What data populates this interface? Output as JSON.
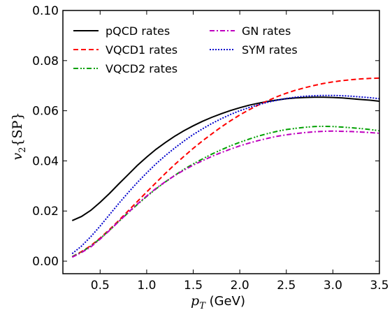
{
  "chart_data": {
    "type": "line",
    "xlabel": "p_T (GeV)",
    "ylabel": "v_2{SP}",
    "xlim": [
      0.1,
      3.5
    ],
    "ylim": [
      -0.005,
      0.1
    ],
    "xticks": [
      "0.5",
      "1.0",
      "1.5",
      "2.0",
      "2.5",
      "3.0",
      "3.5"
    ],
    "xtick_values": [
      0.5,
      1.0,
      1.5,
      2.0,
      2.5,
      3.0,
      3.5
    ],
    "yticks": [
      "0.00",
      "0.02",
      "0.04",
      "0.06",
      "0.08",
      "0.10"
    ],
    "ytick_values": [
      0.0,
      0.02,
      0.04,
      0.06,
      0.08,
      0.1
    ],
    "grid": false,
    "legend_position": "top-left",
    "series": [
      {
        "name": "pQCD rates",
        "color": "#000000",
        "dash": "solid",
        "x": [
          0.2,
          0.3,
          0.4,
          0.5,
          0.6,
          0.7,
          0.8,
          0.9,
          1.0,
          1.1,
          1.2,
          1.3,
          1.4,
          1.5,
          1.6,
          1.7,
          1.8,
          1.9,
          2.0,
          2.1,
          2.2,
          2.3,
          2.4,
          2.5,
          2.6,
          2.7,
          2.8,
          2.9,
          3.0,
          3.1,
          3.2,
          3.3,
          3.4,
          3.5
        ],
        "y": [
          0.0162,
          0.0178,
          0.0203,
          0.0235,
          0.027,
          0.0308,
          0.0345,
          0.0382,
          0.0415,
          0.0446,
          0.0473,
          0.0498,
          0.052,
          0.054,
          0.0558,
          0.0574,
          0.0588,
          0.0601,
          0.0612,
          0.0622,
          0.063,
          0.0637,
          0.0643,
          0.0648,
          0.0651,
          0.0653,
          0.0654,
          0.0654,
          0.0653,
          0.0651,
          0.0648,
          0.0645,
          0.0642,
          0.0638
        ]
      },
      {
        "name": "VQCD1 rates",
        "color": "#ff0000",
        "dash": "dashed",
        "x": [
          0.2,
          0.3,
          0.4,
          0.5,
          0.6,
          0.7,
          0.8,
          0.9,
          1.0,
          1.1,
          1.2,
          1.3,
          1.4,
          1.5,
          1.6,
          1.7,
          1.8,
          1.9,
          2.0,
          2.1,
          2.2,
          2.3,
          2.4,
          2.5,
          2.6,
          2.7,
          2.8,
          2.9,
          3.0,
          3.1,
          3.2,
          3.3,
          3.4,
          3.5
        ],
        "y": [
          0.0018,
          0.0038,
          0.0062,
          0.0092,
          0.0126,
          0.0162,
          0.02,
          0.0238,
          0.0276,
          0.0313,
          0.035,
          0.0385,
          0.0418,
          0.045,
          0.048,
          0.0508,
          0.0535,
          0.056,
          0.0583,
          0.0604,
          0.0623,
          0.064,
          0.0656,
          0.067,
          0.0682,
          0.0692,
          0.0701,
          0.0709,
          0.0715,
          0.072,
          0.0724,
          0.0727,
          0.0729,
          0.073
        ]
      },
      {
        "name": "VQCD2 rates",
        "color": "#00a000",
        "dash": "dashdotdot",
        "x": [
          0.2,
          0.3,
          0.4,
          0.5,
          0.6,
          0.7,
          0.8,
          0.9,
          1.0,
          1.1,
          1.2,
          1.3,
          1.4,
          1.5,
          1.6,
          1.7,
          1.8,
          1.9,
          2.0,
          2.1,
          2.2,
          2.3,
          2.4,
          2.5,
          2.6,
          2.7,
          2.8,
          2.9,
          3.0,
          3.1,
          3.2,
          3.3,
          3.4,
          3.5
        ],
        "y": [
          0.0018,
          0.0036,
          0.006,
          0.009,
          0.0123,
          0.0158,
          0.0193,
          0.0226,
          0.0258,
          0.0288,
          0.0316,
          0.0342,
          0.0366,
          0.0388,
          0.0408,
          0.0427,
          0.0444,
          0.046,
          0.0474,
          0.0487,
          0.0499,
          0.0509,
          0.0518,
          0.0525,
          0.053,
          0.0534,
          0.0537,
          0.0538,
          0.0537,
          0.0535,
          0.0532,
          0.0529,
          0.0525,
          0.052
        ]
      },
      {
        "name": "GN rates",
        "color": "#bf00bf",
        "dash": "dashdot",
        "x": [
          0.2,
          0.3,
          0.4,
          0.5,
          0.6,
          0.7,
          0.8,
          0.9,
          1.0,
          1.1,
          1.2,
          1.3,
          1.4,
          1.5,
          1.6,
          1.7,
          1.8,
          1.9,
          2.0,
          2.1,
          2.2,
          2.3,
          2.4,
          2.5,
          2.6,
          2.7,
          2.8,
          2.9,
          3.0,
          3.1,
          3.2,
          3.3,
          3.4,
          3.5
        ],
        "y": [
          0.0016,
          0.0034,
          0.0057,
          0.0088,
          0.0122,
          0.0158,
          0.0194,
          0.0228,
          0.026,
          0.029,
          0.0317,
          0.0341,
          0.0363,
          0.0383,
          0.0401,
          0.0418,
          0.0433,
          0.0447,
          0.046,
          0.0471,
          0.0481,
          0.049,
          0.0498,
          0.0504,
          0.0509,
          0.0513,
          0.0516,
          0.0518,
          0.0519,
          0.0518,
          0.0517,
          0.0515,
          0.0513,
          0.051
        ]
      },
      {
        "name": "SYM rates",
        "color": "#0000cc",
        "dash": "dotted",
        "x": [
          0.2,
          0.3,
          0.4,
          0.5,
          0.6,
          0.7,
          0.8,
          0.9,
          1.0,
          1.1,
          1.2,
          1.3,
          1.4,
          1.5,
          1.6,
          1.7,
          1.8,
          1.9,
          2.0,
          2.1,
          2.2,
          2.3,
          2.4,
          2.5,
          2.6,
          2.7,
          2.8,
          2.9,
          3.0,
          3.1,
          3.2,
          3.3,
          3.4,
          3.5
        ],
        "y": [
          0.003,
          0.006,
          0.0098,
          0.014,
          0.0185,
          0.023,
          0.0273,
          0.0314,
          0.0352,
          0.0388,
          0.0421,
          0.0451,
          0.0479,
          0.0505,
          0.0528,
          0.0549,
          0.0568,
          0.0585,
          0.06,
          0.0613,
          0.0624,
          0.0634,
          0.0642,
          0.0649,
          0.0654,
          0.0658,
          0.066,
          0.0661,
          0.0661,
          0.066,
          0.0658,
          0.0655,
          0.0652,
          0.0648
        ]
      }
    ]
  }
}
